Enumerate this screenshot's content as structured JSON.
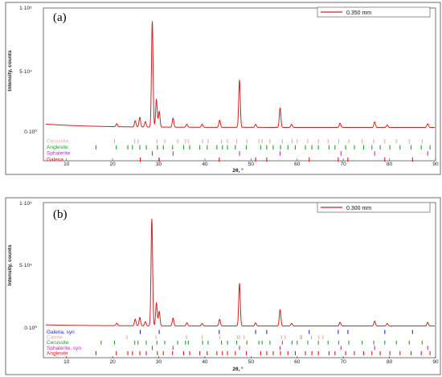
{
  "chart_data": [
    {
      "type": "line",
      "panel_label": "(a)",
      "legend": "0.350 mm",
      "xlabel": "2θ, °",
      "ylabel": "Intensity, counts",
      "xlim": [
        5,
        90
      ],
      "ylim": [
        0,
        100000
      ],
      "xticks": [
        "10",
        "20",
        "30",
        "40",
        "50",
        "60",
        "70",
        "80",
        "90"
      ],
      "yticks": [
        "0·10⁰",
        "5·10⁴",
        "1·10⁵"
      ],
      "line_color": "#d42020",
      "baseline": 3000,
      "peaks": [
        {
          "x": 20.9,
          "y": 2500
        },
        {
          "x": 24.9,
          "y": 5200
        },
        {
          "x": 25.9,
          "y": 8000
        },
        {
          "x": 27.1,
          "y": 4500
        },
        {
          "x": 28.6,
          "y": 87000
        },
        {
          "x": 29.5,
          "y": 23000
        },
        {
          "x": 30.1,
          "y": 13000
        },
        {
          "x": 33.1,
          "y": 7500
        },
        {
          "x": 36.1,
          "y": 2500
        },
        {
          "x": 39.4,
          "y": 2500
        },
        {
          "x": 43.2,
          "y": 6000
        },
        {
          "x": 47.5,
          "y": 39000
        },
        {
          "x": 51.0,
          "y": 2500
        },
        {
          "x": 56.3,
          "y": 16000
        },
        {
          "x": 58.8,
          "y": 2500
        },
        {
          "x": 69.3,
          "y": 3500
        },
        {
          "x": 76.8,
          "y": 4500
        },
        {
          "x": 79.5,
          "y": 2000
        },
        {
          "x": 88.3,
          "y": 3000
        }
      ],
      "phases": [
        {
          "name": "Cerussite",
          "color": "#f3a6a6",
          "positions": [
            20.4,
            24.8,
            25.5,
            29.6,
            31.3,
            34.1,
            35.8,
            36.4,
            39.5,
            40.7,
            43.6,
            44.9,
            46.9,
            49.1,
            51.7,
            52.4,
            54.1,
            56.8,
            58.9,
            60.0,
            62.3,
            64.6,
            66.7,
            69.0,
            71.2,
            74.1,
            76.6,
            79.0,
            81.5,
            84.3,
            87.1
          ]
        },
        {
          "name": "Anglesite",
          "color": "#22a032",
          "positions": [
            16.4,
            20.8,
            23.3,
            24.3,
            25.9,
            27.3,
            29.7,
            31.0,
            33.0,
            35.4,
            36.7,
            38.9,
            40.5,
            42.6,
            43.8,
            44.9,
            46.6,
            49.0,
            52.1,
            53.4,
            54.8,
            56.4,
            58.0,
            59.6,
            61.8,
            63.2,
            64.6,
            66.9,
            68.2,
            70.5,
            72.4,
            74.4,
            76.2,
            78.0,
            80.1,
            82.3,
            84.7,
            86.9,
            88.8
          ]
        },
        {
          "name": "Sphalerite",
          "color": "#b030c0",
          "positions": [
            28.6,
            33.1,
            47.5,
            56.3,
            69.5,
            76.8,
            88.3
          ]
        },
        {
          "name": "Galena",
          "color": "#e01818",
          "positions": [
            26.0,
            30.1,
            43.1,
            51.0,
            53.4,
            62.6,
            68.9,
            71.0,
            79.0,
            85.0
          ]
        }
      ]
    },
    {
      "type": "line",
      "panel_label": "(b)",
      "legend": "0.300 mm",
      "xlabel": "2θ, °",
      "ylabel": "Intensity, counts",
      "xlim": [
        5,
        90
      ],
      "ylim": [
        0,
        100000
      ],
      "xticks": [
        "10",
        "20",
        "30",
        "40",
        "50",
        "60",
        "70",
        "80",
        "90"
      ],
      "yticks": [
        "0·10⁰",
        "5·10⁴",
        "1·10⁵"
      ],
      "line_color": "#d42020",
      "baseline": 1000,
      "peaks": [
        {
          "x": 20.9,
          "y": 2000
        },
        {
          "x": 24.9,
          "y": 5500
        },
        {
          "x": 25.9,
          "y": 7000
        },
        {
          "x": 27.1,
          "y": 3500
        },
        {
          "x": 28.5,
          "y": 88000
        },
        {
          "x": 29.5,
          "y": 19000
        },
        {
          "x": 30.1,
          "y": 12000
        },
        {
          "x": 33.1,
          "y": 6500
        },
        {
          "x": 36.1,
          "y": 2500
        },
        {
          "x": 39.4,
          "y": 2000
        },
        {
          "x": 43.2,
          "y": 5500
        },
        {
          "x": 47.5,
          "y": 35000
        },
        {
          "x": 51.0,
          "y": 2500
        },
        {
          "x": 56.3,
          "y": 13500
        },
        {
          "x": 58.8,
          "y": 2000
        },
        {
          "x": 69.3,
          "y": 3000
        },
        {
          "x": 76.8,
          "y": 4000
        },
        {
          "x": 79.5,
          "y": 2000
        },
        {
          "x": 88.3,
          "y": 3000
        }
      ],
      "phases": [
        {
          "name": "Galena, syn",
          "color": "#2828c8",
          "positions": [
            26.0,
            30.1,
            43.1,
            51.0,
            53.4,
            62.6,
            68.9,
            71.0,
            79.0,
            85.0
          ]
        },
        {
          "name": "Calcite",
          "color": "#f3a6a6",
          "positions": [
            23.1,
            29.4,
            36.0,
            39.4,
            43.2,
            47.1,
            47.5,
            48.5,
            56.6,
            57.4,
            60.7,
            61.0,
            63.1,
            64.7,
            65.6
          ]
        },
        {
          "name": "Cerussite",
          "color": "#22a032",
          "positions": [
            17.5,
            20.4,
            24.8,
            25.5,
            27.3,
            29.6,
            31.3,
            34.1,
            35.8,
            36.4,
            39.5,
            40.7,
            43.6,
            44.9,
            46.9,
            49.1,
            51.7,
            52.4,
            54.1,
            56.8,
            58.9,
            60.0,
            62.3,
            64.6,
            66.7,
            69.0,
            71.2,
            74.1,
            76.6,
            79.0,
            81.5,
            84.3,
            87.1
          ]
        },
        {
          "name": "Sphalerite, syn",
          "color": "#b030c0",
          "positions": [
            28.6,
            33.1,
            47.5,
            56.3,
            69.5,
            76.8,
            88.3
          ]
        },
        {
          "name": "Anglesite",
          "color": "#e01818",
          "positions": [
            16.4,
            20.8,
            23.3,
            24.3,
            25.9,
            27.3,
            29.7,
            31.0,
            33.0,
            35.4,
            36.7,
            38.9,
            40.5,
            42.6,
            43.8,
            44.9,
            46.6,
            49.0,
            52.1,
            53.4,
            54.8,
            56.4,
            58.0,
            59.6,
            61.8,
            63.2,
            64.6,
            66.9,
            68.2,
            70.5,
            72.4,
            74.4,
            76.2,
            78.0,
            80.1,
            82.3,
            84.7,
            86.9,
            88.8
          ]
        }
      ]
    }
  ]
}
